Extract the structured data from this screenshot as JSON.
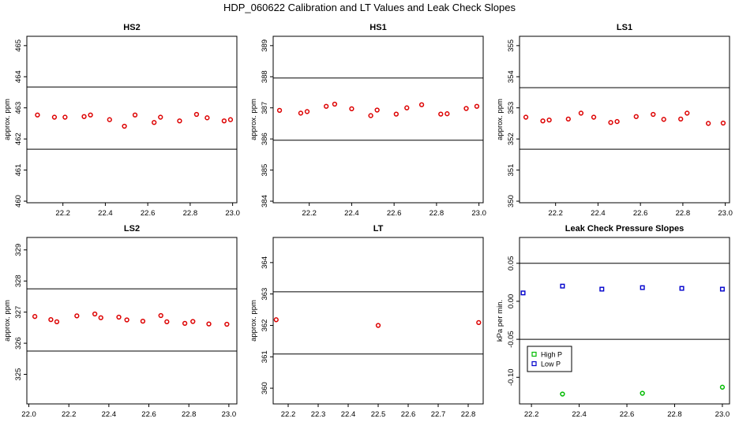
{
  "title": "HDP_060622  Calibration and LT Values and Leak Check Slopes",
  "chart_data": [
    {
      "type": "scatter",
      "title": "HS2",
      "ylabel": "approx. ppm",
      "xlim": [
        22.03,
        23.02
      ],
      "ylim": [
        459.95,
        465.3
      ],
      "xticks": [
        22.2,
        22.4,
        22.6,
        22.8,
        23.0
      ],
      "xtick_labels": [
        "22.2",
        "22.4",
        "22.6",
        "22.8",
        "23.0"
      ],
      "yticks": [
        460,
        461,
        462,
        463,
        464,
        465
      ],
      "ytick_labels": [
        "460",
        "461",
        "462",
        "463",
        "464",
        "465"
      ],
      "hlines": [
        463.67,
        461.67
      ],
      "series": [
        {
          "name": "HS2",
          "color": "#dd0000",
          "x": [
            22.08,
            22.16,
            22.21,
            22.3,
            22.33,
            22.42,
            22.49,
            22.54,
            22.63,
            22.66,
            22.75,
            22.83,
            22.88,
            22.96,
            22.99
          ],
          "y": [
            462.77,
            462.7,
            462.7,
            462.72,
            462.77,
            462.62,
            462.41,
            462.77,
            462.53,
            462.7,
            462.58,
            462.79,
            462.68,
            462.58,
            462.62
          ]
        }
      ]
    },
    {
      "type": "scatter",
      "title": "HS1",
      "ylabel": "approx. ppm",
      "xlim": [
        22.03,
        23.02
      ],
      "ylim": [
        383.95,
        389.3
      ],
      "xticks": [
        22.2,
        22.4,
        22.6,
        22.8,
        23.0
      ],
      "xtick_labels": [
        "22.2",
        "22.4",
        "22.6",
        "22.8",
        "23.0"
      ],
      "yticks": [
        384,
        385,
        386,
        387,
        388,
        389
      ],
      "ytick_labels": [
        "384",
        "385",
        "386",
        "387",
        "388",
        "389"
      ],
      "hlines": [
        387.96,
        385.96
      ],
      "series": [
        {
          "name": "HS1",
          "color": "#dd0000",
          "x": [
            22.06,
            22.16,
            22.19,
            22.28,
            22.32,
            22.4,
            22.49,
            22.52,
            22.61,
            22.66,
            22.73,
            22.82,
            22.85,
            22.94,
            22.99
          ],
          "y": [
            386.92,
            386.83,
            386.88,
            387.05,
            387.12,
            386.97,
            386.75,
            386.93,
            386.8,
            387.0,
            387.1,
            386.8,
            386.81,
            386.98,
            387.05
          ]
        }
      ]
    },
    {
      "type": "scatter",
      "title": "LS1",
      "ylabel": "approx. ppm",
      "xlim": [
        22.03,
        23.02
      ],
      "ylim": [
        349.95,
        355.3
      ],
      "xticks": [
        22.2,
        22.4,
        22.6,
        22.8,
        23.0
      ],
      "xtick_labels": [
        "22.2",
        "22.4",
        "22.6",
        "22.8",
        "23.0"
      ],
      "yticks": [
        350,
        351,
        352,
        353,
        354,
        355
      ],
      "ytick_labels": [
        "350",
        "351",
        "352",
        "353",
        "354",
        "355"
      ],
      "hlines": [
        353.65,
        351.67
      ],
      "series": [
        {
          "name": "LS1",
          "color": "#dd0000",
          "x": [
            22.06,
            22.14,
            22.17,
            22.26,
            22.32,
            22.38,
            22.46,
            22.49,
            22.58,
            22.66,
            22.71,
            22.79,
            22.82,
            22.92,
            22.99
          ],
          "y": [
            352.7,
            352.58,
            352.61,
            352.64,
            352.83,
            352.7,
            352.53,
            352.56,
            352.72,
            352.79,
            352.63,
            352.64,
            352.83,
            352.5,
            352.51
          ]
        }
      ]
    },
    {
      "type": "scatter",
      "title": "LS2",
      "ylabel": "approx. ppm",
      "xlim": [
        21.99,
        23.04
      ],
      "ylim": [
        324.05,
        329.4
      ],
      "xticks": [
        22.0,
        22.2,
        22.4,
        22.6,
        22.8,
        23.0
      ],
      "xtick_labels": [
        "22.0",
        "22.2",
        "22.4",
        "22.6",
        "22.8",
        "23.0"
      ],
      "yticks": [
        325,
        326,
        327,
        328,
        329
      ],
      "ytick_labels": [
        "325",
        "326",
        "327",
        "328",
        "329"
      ],
      "hlines": [
        327.75,
        325.75
      ],
      "series": [
        {
          "name": "LS2",
          "color": "#dd0000",
          "x": [
            22.03,
            22.11,
            22.14,
            22.24,
            22.33,
            22.36,
            22.45,
            22.49,
            22.57,
            22.66,
            22.69,
            22.78,
            22.82,
            22.9,
            22.99
          ],
          "y": [
            326.86,
            326.76,
            326.69,
            326.88,
            326.94,
            326.82,
            326.84,
            326.75,
            326.71,
            326.89,
            326.69,
            326.64,
            326.7,
            326.62,
            326.61
          ]
        }
      ]
    },
    {
      "type": "scatter",
      "title": "LT",
      "ylabel": "approx. ppm",
      "xlim": [
        22.15,
        22.85
      ],
      "ylim": [
        359.5,
        364.8
      ],
      "xticks": [
        22.2,
        22.3,
        22.4,
        22.5,
        22.6,
        22.7,
        22.8
      ],
      "xtick_labels": [
        "22.2",
        "22.3",
        "22.4",
        "22.5",
        "22.6",
        "22.7",
        "22.8"
      ],
      "yticks": [
        360,
        361,
        362,
        363,
        364
      ],
      "ytick_labels": [
        "360",
        "361",
        "362",
        "363",
        "364"
      ],
      "hlines": [
        363.07,
        361.09
      ],
      "series": [
        {
          "name": "LT",
          "color": "#dd0000",
          "x": [
            22.16,
            22.5,
            22.835
          ],
          "y": [
            362.18,
            362.0,
            362.09
          ]
        }
      ]
    },
    {
      "type": "scatter",
      "title": "Leak Check Pressure Slopes",
      "ylabel": "kPa per min.",
      "xlim": [
        22.15,
        23.03
      ],
      "ylim": [
        -0.135,
        0.084
      ],
      "xticks": [
        22.2,
        22.4,
        22.6,
        22.8,
        23.0
      ],
      "xtick_labels": [
        "22.2",
        "22.4",
        "22.6",
        "22.8",
        "23.0"
      ],
      "yticks": [
        -0.1,
        -0.05,
        0.0,
        0.05
      ],
      "ytick_labels": [
        "-0.10",
        "-0.05",
        "0.00",
        "0.05"
      ],
      "hlines": [
        0.05,
        -0.05
      ],
      "legend": {
        "position": "bottom-left",
        "entries": [
          "High P",
          "Low P"
        ]
      },
      "series": [
        {
          "name": "High P",
          "color": "#00bb00",
          "marker": "circle",
          "x": [
            22.33,
            22.665,
            23.0
          ],
          "y": [
            -0.122,
            -0.121,
            -0.113
          ]
        },
        {
          "name": "Low P",
          "color": "#0000cc",
          "marker": "square",
          "x": [
            22.165,
            22.33,
            22.495,
            22.665,
            22.83,
            23.0
          ],
          "y": [
            0.011,
            0.02,
            0.016,
            0.018,
            0.017,
            0.016
          ]
        }
      ]
    }
  ]
}
